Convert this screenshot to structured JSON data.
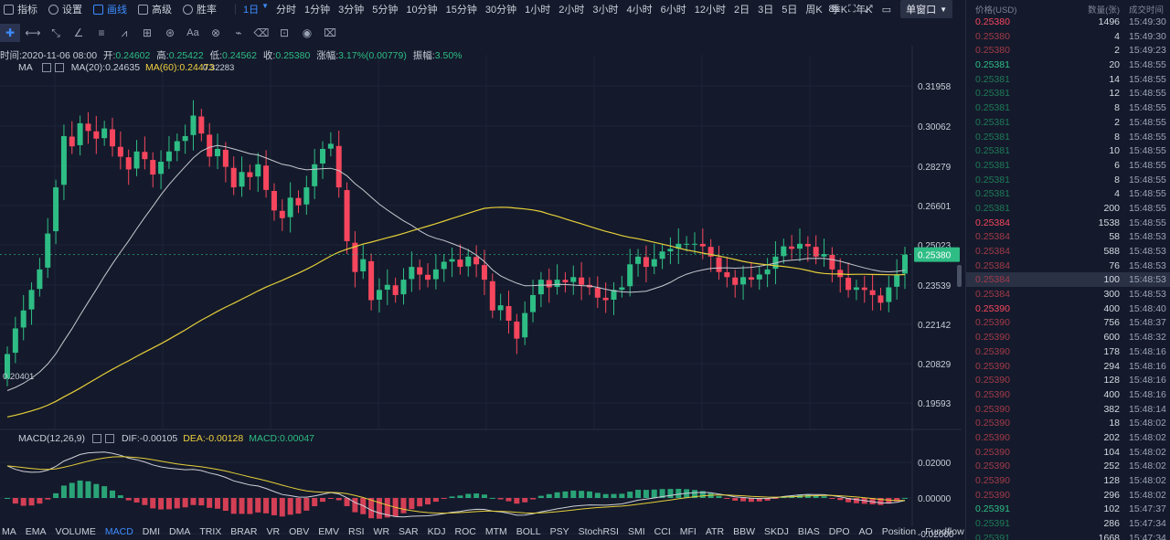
{
  "toolbar": {
    "items": [
      {
        "label": "指标",
        "icon": "indicator-icon"
      },
      {
        "label": "设置",
        "icon": "gear-icon"
      },
      {
        "label": "画线",
        "icon": "pencil-icon",
        "active": true
      },
      {
        "label": "高级",
        "icon": "chart-icon"
      },
      {
        "label": "胜率",
        "icon": "clock-icon"
      }
    ],
    "intervals": [
      "1日",
      "分时",
      "1分钟",
      "3分钟",
      "5分钟",
      "10分钟",
      "15分钟",
      "30分钟",
      "1小时",
      "2小时",
      "3小时",
      "4小时",
      "6小时",
      "12小时",
      "2日",
      "3日",
      "5日",
      "周K",
      "季K",
      "年K"
    ],
    "active_interval": "1日",
    "countdown": "8s",
    "window_mode": "单窗口"
  },
  "ohlc": {
    "time_label": "时间:",
    "time": "2020-11-06 08:00",
    "open_label": "开:",
    "open": "0.24602",
    "high_label": "高:",
    "high": "0.25422",
    "low_label": "低:",
    "low": "0.24562",
    "close_label": "收:",
    "close": "0.25380",
    "change_label": "涨幅:",
    "change": "3.17%(0.00779)",
    "amp_label": "振幅:",
    "amp": "3.50%"
  },
  "ma_legend": {
    "name": "MA",
    "ma20": "MA(20):0.24635",
    "ma60": "MA(60):0.24473"
  },
  "macd_legend": {
    "name": "MACD(12,26,9)",
    "dif": "DIF:-0.00105",
    "dea": "DEA:-0.00128",
    "macd": "MACD:0.00047"
  },
  "price_axis": [
    "0.31958",
    "0.30062",
    "0.28279",
    "0.26601",
    "0.25023",
    "0.23539",
    "0.22142",
    "0.20829",
    "0.19593"
  ],
  "current_price": "0.25380",
  "low_marker": "0.20401",
  "high_marker": "0.32283",
  "macd_axis": [
    "0.02000",
    "0.00000",
    "-0.02000"
  ],
  "indicator_tabs": [
    "MA",
    "EMA",
    "VOLUME",
    "MACD",
    "DMI",
    "DMA",
    "TRIX",
    "BRAR",
    "VR",
    "OBV",
    "EMV",
    "RSI",
    "WR",
    "SAR",
    "KDJ",
    "ROC",
    "MTM",
    "BOLL",
    "PSY",
    "StochRSI",
    "SMI",
    "CCI",
    "MFI",
    "ATR",
    "BBW",
    "SKDJ",
    "BIAS",
    "DPO",
    "AO",
    "Position",
    "Fundflow"
  ],
  "active_indicator": "MACD",
  "orderbook": {
    "headers": {
      "price": "价格(USD)",
      "qty": "数量(张)",
      "time": "成交时间"
    },
    "rows": [
      {
        "p": "0.25380",
        "q": "1496",
        "t": "15:49:30",
        "c": "red"
      },
      {
        "p": "0.25380",
        "q": "4",
        "t": "15:49:30",
        "c": "dimred"
      },
      {
        "p": "0.25380",
        "q": "2",
        "t": "15:49:23",
        "c": "dimred"
      },
      {
        "p": "0.25381",
        "q": "20",
        "t": "15:48:55",
        "c": "green"
      },
      {
        "p": "0.25381",
        "q": "14",
        "t": "15:48:55",
        "c": "dimgreen"
      },
      {
        "p": "0.25381",
        "q": "12",
        "t": "15:48:55",
        "c": "dimgreen"
      },
      {
        "p": "0.25381",
        "q": "8",
        "t": "15:48:55",
        "c": "dimgreen"
      },
      {
        "p": "0.25381",
        "q": "2",
        "t": "15:48:55",
        "c": "dimgreen"
      },
      {
        "p": "0.25381",
        "q": "8",
        "t": "15:48:55",
        "c": "dimgreen"
      },
      {
        "p": "0.25381",
        "q": "10",
        "t": "15:48:55",
        "c": "dimgreen"
      },
      {
        "p": "0.25381",
        "q": "6",
        "t": "15:48:55",
        "c": "dimgreen"
      },
      {
        "p": "0.25381",
        "q": "8",
        "t": "15:48:55",
        "c": "dimgreen"
      },
      {
        "p": "0.25381",
        "q": "4",
        "t": "15:48:55",
        "c": "dimgreen"
      },
      {
        "p": "0.25381",
        "q": "200",
        "t": "15:48:55",
        "c": "dimgreen"
      },
      {
        "p": "0.25384",
        "q": "1538",
        "t": "15:48:55",
        "c": "red"
      },
      {
        "p": "0.25384",
        "q": "58",
        "t": "15:48:53",
        "c": "dimred"
      },
      {
        "p": "0.25384",
        "q": "588",
        "t": "15:48:53",
        "c": "dimred"
      },
      {
        "p": "0.25384",
        "q": "76",
        "t": "15:48:53",
        "c": "dimred"
      },
      {
        "p": "0.25384",
        "q": "100",
        "t": "15:48:53",
        "c": "dimred",
        "hl": true
      },
      {
        "p": "0.25384",
        "q": "300",
        "t": "15:48:53",
        "c": "dimred"
      },
      {
        "p": "0.25390",
        "q": "400",
        "t": "15:48:40",
        "c": "red"
      },
      {
        "p": "0.25390",
        "q": "756",
        "t": "15:48:37",
        "c": "dimred"
      },
      {
        "p": "0.25390",
        "q": "600",
        "t": "15:48:32",
        "c": "dimred"
      },
      {
        "p": "0.25390",
        "q": "178",
        "t": "15:48:16",
        "c": "dimred"
      },
      {
        "p": "0.25390",
        "q": "294",
        "t": "15:48:16",
        "c": "dimred"
      },
      {
        "p": "0.25390",
        "q": "128",
        "t": "15:48:16",
        "c": "dimred"
      },
      {
        "p": "0.25390",
        "q": "400",
        "t": "15:48:16",
        "c": "dimred"
      },
      {
        "p": "0.25390",
        "q": "382",
        "t": "15:48:14",
        "c": "dimred"
      },
      {
        "p": "0.25390",
        "q": "18",
        "t": "15:48:02",
        "c": "dimred"
      },
      {
        "p": "0.25390",
        "q": "202",
        "t": "15:48:02",
        "c": "dimred"
      },
      {
        "p": "0.25390",
        "q": "104",
        "t": "15:48:02",
        "c": "dimred"
      },
      {
        "p": "0.25390",
        "q": "252",
        "t": "15:48:02",
        "c": "dimred"
      },
      {
        "p": "0.25390",
        "q": "128",
        "t": "15:48:02",
        "c": "dimred"
      },
      {
        "p": "0.25390",
        "q": "296",
        "t": "15:48:02",
        "c": "dimred"
      },
      {
        "p": "0.25391",
        "q": "102",
        "t": "15:47:37",
        "c": "green"
      },
      {
        "p": "0.25391",
        "q": "286",
        "t": "15:47:34",
        "c": "dimgreen"
      },
      {
        "p": "0.25391",
        "q": "1668",
        "t": "15:47:34",
        "c": "dimgreen"
      }
    ]
  },
  "colors": {
    "up": "#2ebd85",
    "down": "#f6465d",
    "ma20": "#c8c8d0",
    "ma60": "#e6cf3a",
    "accent": "#3d8bff",
    "bg": "#141a2b"
  }
}
